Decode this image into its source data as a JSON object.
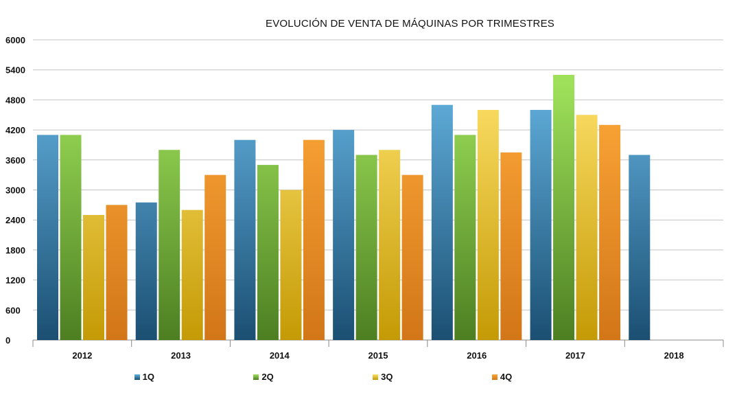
{
  "chart_data": {
    "type": "bar",
    "title": "EVOLUCIÓN DE VENTA DE MÁQUINAS POR TRIMESTRES",
    "xlabel": "",
    "ylabel": "",
    "categories": [
      "2012",
      "2013",
      "2014",
      "2015",
      "2016",
      "2017",
      "2018"
    ],
    "ylim": [
      0,
      6000
    ],
    "yticks": [
      0,
      600,
      1200,
      1800,
      2400,
      3000,
      3600,
      4200,
      4800,
      5400,
      6000
    ],
    "grid": true,
    "legend_position": "bottom",
    "series": [
      {
        "name": "1Q",
        "color": "#62b0de",
        "color_dark": "#1b4f72",
        "values": [
          4100,
          2750,
          4000,
          4200,
          4700,
          4600,
          3700
        ]
      },
      {
        "name": "2Q",
        "color": "#9ee05a",
        "color_dark": "#4d7f22",
        "values": [
          4100,
          3800,
          3500,
          3700,
          4100,
          5300,
          null
        ]
      },
      {
        "name": "3Q",
        "color": "#fde068",
        "color_dark": "#c49a05",
        "values": [
          2500,
          2600,
          3000,
          3800,
          4600,
          4500,
          null
        ]
      },
      {
        "name": "4Q",
        "color": "#fea93a",
        "color_dark": "#d27618",
        "values": [
          2700,
          3300,
          4000,
          3300,
          3750,
          4300,
          null
        ]
      }
    ]
  }
}
